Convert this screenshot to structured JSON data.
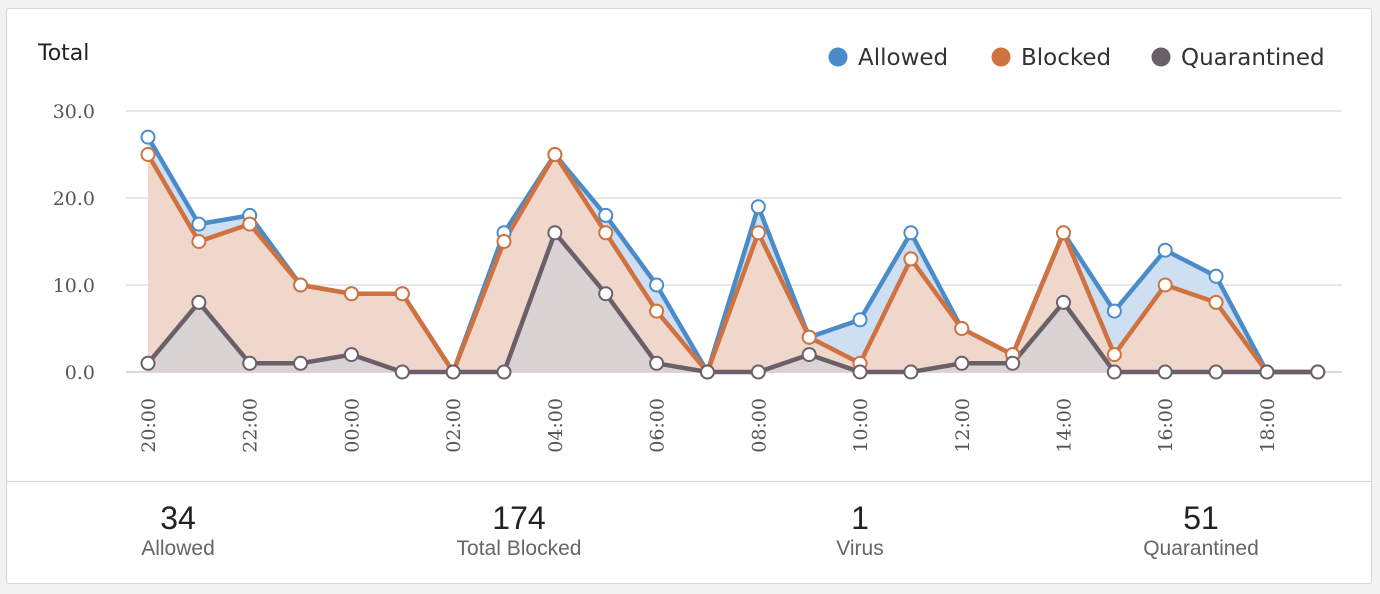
{
  "chart_data": {
    "type": "area",
    "title": "Total",
    "x": [
      "20:00",
      "21:00",
      "22:00",
      "23:00",
      "00:00",
      "01:00",
      "02:00",
      "03:00",
      "04:00",
      "05:00",
      "06:00",
      "07:00",
      "08:00",
      "09:00",
      "10:00",
      "11:00",
      "12:00",
      "13:00",
      "14:00",
      "15:00",
      "16:00",
      "17:00",
      "18:00",
      "19:00"
    ],
    "x_tick_labels": [
      "20:00",
      "22:00",
      "00:00",
      "02:00",
      "04:00",
      "06:00",
      "08:00",
      "10:00",
      "12:00",
      "14:00",
      "16:00",
      "18:00"
    ],
    "y_tick_labels": [
      "0.0",
      "10.0",
      "20.0",
      "30.0"
    ],
    "ylim": [
      0,
      30
    ],
    "grid": true,
    "legend_position": "top-right",
    "series": [
      {
        "name": "Allowed",
        "color": "#4a8cca",
        "fill": "#c9dcf0",
        "values": [
          27,
          17,
          18,
          10,
          9,
          9,
          0,
          16,
          25,
          18,
          10,
          0,
          19,
          4,
          6,
          16,
          5,
          2,
          16,
          7,
          14,
          11,
          0,
          0
        ]
      },
      {
        "name": "Blocked",
        "color": "#d0723f",
        "fill": "#f3d6c8",
        "values": [
          25,
          15,
          17,
          10,
          9,
          9,
          0,
          15,
          25,
          16,
          7,
          0,
          16,
          4,
          1,
          13,
          5,
          2,
          16,
          2,
          10,
          8,
          0,
          0
        ]
      },
      {
        "name": "Quarantined",
        "color": "#6b5f69",
        "fill": "#d6d3d5",
        "values": [
          1,
          8,
          1,
          1,
          2,
          0,
          0,
          0,
          16,
          9,
          1,
          0,
          0,
          2,
          0,
          0,
          1,
          1,
          8,
          0,
          0,
          0,
          0,
          0
        ]
      }
    ]
  },
  "summary": [
    {
      "value": "34",
      "label": "Allowed"
    },
    {
      "value": "174",
      "label": "Total Blocked"
    },
    {
      "value": "1",
      "label": "Virus"
    },
    {
      "value": "51",
      "label": "Quarantined"
    }
  ]
}
